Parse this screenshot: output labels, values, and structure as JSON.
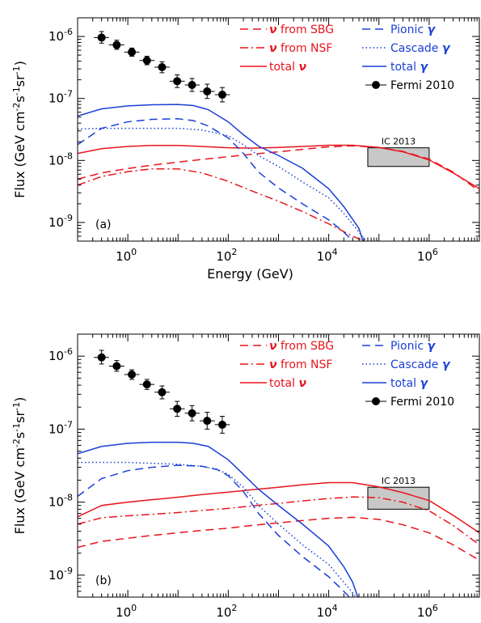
{
  "chart_data": [
    {
      "type": "line",
      "panel_label": "(a)",
      "xlabel": "Energy (GeV)",
      "ylabel": "Flux (GeV cm-2s-1sr-1)",
      "ylabel_parts": [
        "Flux (GeV cm",
        "-2",
        "s",
        "-1",
        "sr",
        "-1",
        ")"
      ],
      "xscale": "log",
      "yscale": "log",
      "xlim": [
        0.1,
        10000000
      ],
      "ylim": [
        5e-10,
        2e-06
      ],
      "x_ticks": [
        {
          "v": 1,
          "base": "10",
          "exp": "0"
        },
        {
          "v": 100,
          "base": "10",
          "exp": "2"
        },
        {
          "v": 10000,
          "base": "10",
          "exp": "4"
        },
        {
          "v": 1000000,
          "base": "10",
          "exp": "6"
        }
      ],
      "y_ticks": [
        {
          "v": 1e-09,
          "base": "10",
          "exp": "-9"
        },
        {
          "v": 1e-08,
          "base": "10",
          "exp": "-8"
        },
        {
          "v": 1e-07,
          "base": "10",
          "exp": "-7"
        },
        {
          "v": 1e-06,
          "base": "10",
          "exp": "-6"
        }
      ],
      "series": [
        {
          "name": "ν from SBG",
          "color": "#e8141c",
          "style": "dashed",
          "x": [
            0.1,
            0.3,
            1,
            3,
            10,
            30,
            100,
            300,
            1000,
            3000,
            10000,
            30000,
            100000,
            300000,
            1000000,
            3000000,
            10000000
          ],
          "y": [
            5e-09,
            6.3e-09,
            7.4e-09,
            8.4e-09,
            9.4e-09,
            1.04e-08,
            1.15e-08,
            1.26e-08,
            1.38e-08,
            1.51e-08,
            1.66e-08,
            1.72e-08,
            1.62e-08,
            1.4e-08,
            1.05e-08,
            6.5e-09,
            3.2e-09
          ]
        },
        {
          "name": "ν from NSF",
          "color": "#e8141c",
          "style": "dashdot",
          "x": [
            0.1,
            0.3,
            1,
            3,
            10,
            30,
            100,
            300,
            1000,
            3000,
            10000,
            30000,
            100000
          ],
          "y": [
            4e-09,
            5.5e-09,
            6.6e-09,
            7.3e-09,
            7.3e-09,
            6.3e-09,
            4.6e-09,
            3.2e-09,
            2.2e-09,
            1.5e-09,
            9.5e-10,
            6e-10,
            4e-10
          ]
        },
        {
          "name": "total ν",
          "color": "#e8141c",
          "style": "solid",
          "x": [
            0.1,
            0.3,
            1,
            3,
            10,
            30,
            100,
            300,
            1000,
            3000,
            10000,
            30000,
            100000,
            300000,
            1000000,
            3000000,
            10000000
          ],
          "y": [
            1.3e-08,
            1.55e-08,
            1.68e-08,
            1.75e-08,
            1.75e-08,
            1.68e-08,
            1.6e-08,
            1.58e-08,
            1.62e-08,
            1.68e-08,
            1.76e-08,
            1.76e-08,
            1.62e-08,
            1.38e-08,
            1.02e-08,
            6.3e-09,
            3.5e-09
          ]
        },
        {
          "name": "Pionic γ",
          "color": "#1a3fd6",
          "style": "dashed",
          "x": [
            0.1,
            0.3,
            1,
            3,
            10,
            20,
            40,
            100,
            200,
            400,
            1000,
            3000,
            10000,
            20000,
            30000
          ],
          "y": [
            1.8e-08,
            3.3e-08,
            4.2e-08,
            4.6e-08,
            4.7e-08,
            4.4e-08,
            3.6e-08,
            2.3e-08,
            1.3e-08,
            6.5e-09,
            3.6e-09,
            2e-09,
            1.1e-09,
            7e-10,
            5e-10
          ]
        },
        {
          "name": "Cascade γ",
          "color": "#1a3fd6",
          "style": "dotted",
          "x": [
            0.1,
            0.3,
            1,
            3,
            10,
            30,
            100,
            200,
            400,
            1000,
            3000,
            10000,
            20000,
            40000,
            70000
          ],
          "y": [
            3.2e-08,
            3.3e-08,
            3.3e-08,
            3.3e-08,
            3.3e-08,
            3.1e-08,
            2.5e-08,
            1.8e-08,
            1.2e-08,
            8e-09,
            4.5e-09,
            2.5e-09,
            1.4e-09,
            7e-10,
            4e-10
          ]
        },
        {
          "name": "total γ",
          "color": "#1a3fd6",
          "style": "solid",
          "x": [
            0.1,
            0.3,
            1,
            3,
            10,
            20,
            40,
            100,
            200,
            400,
            1000,
            3000,
            10000,
            20000,
            40000,
            50000
          ],
          "y": [
            5.2e-08,
            6.8e-08,
            7.6e-08,
            7.9e-08,
            8e-08,
            7.7e-08,
            6.6e-08,
            4.2e-08,
            2.6e-08,
            1.7e-08,
            1.2e-08,
            7.5e-09,
            3.5e-09,
            1.8e-09,
            8e-10,
            4.5e-10
          ]
        }
      ],
      "fermi": {
        "name": "Fermi 2010",
        "points": [
          {
            "x": 0.3,
            "y": 9.6e-07,
            "x_lo": 0.21,
            "x_hi": 0.42,
            "y_lo": 7.8e-07,
            "y_hi": 1.2e-06
          },
          {
            "x": 0.6,
            "y": 7.3e-07,
            "x_lo": 0.42,
            "x_hi": 0.85,
            "y_lo": 6.2e-07,
            "y_hi": 8.7e-07
          },
          {
            "x": 1.2,
            "y": 5.6e-07,
            "x_lo": 0.85,
            "x_hi": 1.7,
            "y_lo": 4.8e-07,
            "y_hi": 6.5e-07
          },
          {
            "x": 2.4,
            "y": 4.1e-07,
            "x_lo": 1.7,
            "x_hi": 3.4,
            "y_lo": 3.5e-07,
            "y_hi": 4.8e-07
          },
          {
            "x": 4.8,
            "y": 3.2e-07,
            "x_lo": 3.4,
            "x_hi": 6.8,
            "y_lo": 2.6e-07,
            "y_hi": 3.9e-07
          },
          {
            "x": 9.6,
            "y": 1.9e-07,
            "x_lo": 6.8,
            "x_hi": 13.6,
            "y_lo": 1.5e-07,
            "y_hi": 2.4e-07
          },
          {
            "x": 19,
            "y": 1.65e-07,
            "x_lo": 13.6,
            "x_hi": 27,
            "y_lo": 1.3e-07,
            "y_hi": 2.1e-07
          },
          {
            "x": 38,
            "y": 1.3e-07,
            "x_lo": 27,
            "x_hi": 54,
            "y_lo": 1e-07,
            "y_hi": 1.7e-07
          },
          {
            "x": 76,
            "y": 1.15e-07,
            "x_lo": 54,
            "x_hi": 108,
            "y_lo": 8.8e-08,
            "y_hi": 1.5e-07
          }
        ]
      },
      "icecube": {
        "label": "IC 2013",
        "x": [
          60000,
          1000000
        ],
        "y": [
          8e-09,
          1.6e-08
        ],
        "fill": "#c8c8c8"
      },
      "legend": {
        "placement": "top-right",
        "red": [
          {
            "prefix": "ν",
            "text": " from SBG",
            "style": "dashed"
          },
          {
            "prefix": "ν",
            "text": " from NSF",
            "style": "dashdot"
          },
          {
            "prefix": "total ",
            "text": "ν",
            "style": "solid"
          }
        ],
        "blue": [
          {
            "text": "Pionic ",
            "suffix": "γ",
            "style": "dashed"
          },
          {
            "text": "Cascade ",
            "suffix": "γ",
            "style": "dotted"
          },
          {
            "text": "total ",
            "suffix": "γ",
            "style": "solid"
          }
        ],
        "fermi_label": "Fermi 2010"
      }
    },
    {
      "type": "line",
      "panel_label": "(b)",
      "xlabel": "Energy (GeV)",
      "ylabel": "Flux (GeV cm-2s-1sr-1)",
      "ylabel_parts": [
        "Flux (GeV cm",
        "-2",
        "s",
        "-1",
        "sr",
        "-1",
        ")"
      ],
      "xscale": "log",
      "yscale": "log",
      "xlim": [
        0.1,
        10000000
      ],
      "ylim": [
        5e-10,
        2e-06
      ],
      "x_ticks": [
        {
          "v": 1,
          "base": "10",
          "exp": "0"
        },
        {
          "v": 100,
          "base": "10",
          "exp": "2"
        },
        {
          "v": 10000,
          "base": "10",
          "exp": "4"
        },
        {
          "v": 1000000,
          "base": "10",
          "exp": "6"
        }
      ],
      "y_ticks": [
        {
          "v": 1e-09,
          "base": "10",
          "exp": "-9"
        },
        {
          "v": 1e-08,
          "base": "10",
          "exp": "-8"
        },
        {
          "v": 1e-07,
          "base": "10",
          "exp": "-7"
        },
        {
          "v": 1e-06,
          "base": "10",
          "exp": "-6"
        }
      ],
      "series": [
        {
          "name": "ν from SBG",
          "color": "#e8141c",
          "style": "dashed",
          "x": [
            0.1,
            0.3,
            1,
            3,
            10,
            30,
            100,
            300,
            1000,
            3000,
            10000,
            30000,
            100000,
            300000,
            1000000,
            3000000,
            10000000
          ],
          "y": [
            2.4e-09,
            2.9e-09,
            3.2e-09,
            3.5e-09,
            3.8e-09,
            4.1e-09,
            4.4e-09,
            4.8e-09,
            5.2e-09,
            5.6e-09,
            6e-09,
            6.2e-09,
            5.8e-09,
            4.9e-09,
            3.8e-09,
            2.6e-09,
            1.6e-09
          ]
        },
        {
          "name": "ν from NSF",
          "color": "#e8141c",
          "style": "dashdot",
          "x": [
            0.1,
            0.3,
            1,
            3,
            10,
            30,
            100,
            300,
            1000,
            3000,
            10000,
            30000,
            100000,
            300000,
            1000000,
            3000000,
            10000000
          ],
          "y": [
            5e-09,
            6.1e-09,
            6.5e-09,
            6.8e-09,
            7.2e-09,
            7.7e-09,
            8.2e-09,
            8.9e-09,
            9.6e-09,
            1.04e-08,
            1.12e-08,
            1.18e-08,
            1.15e-08,
            1e-08,
            7.6e-09,
            4.8e-09,
            2.6e-09
          ]
        },
        {
          "name": "total ν",
          "color": "#e8141c",
          "style": "solid",
          "x": [
            0.1,
            0.3,
            1,
            3,
            10,
            30,
            100,
            300,
            1000,
            3000,
            10000,
            30000,
            100000,
            300000,
            1000000,
            3000000,
            10000000
          ],
          "y": [
            6.3e-09,
            9e-09,
            1e-08,
            1.08e-08,
            1.17e-08,
            1.27e-08,
            1.37e-08,
            1.48e-08,
            1.6e-08,
            1.73e-08,
            1.85e-08,
            1.85e-08,
            1.62e-08,
            1.35e-08,
            1.05e-08,
            6.6e-09,
            3.8e-09
          ]
        },
        {
          "name": "Pionic γ",
          "color": "#1a3fd6",
          "style": "dashed",
          "x": [
            0.1,
            0.3,
            1,
            3,
            10,
            30,
            60,
            100,
            200,
            400,
            1000,
            3000,
            10000,
            20000,
            30000
          ],
          "y": [
            1.2e-08,
            2.1e-08,
            2.7e-08,
            3e-08,
            3.2e-08,
            3.1e-08,
            2.8e-08,
            2.3e-08,
            1.4e-08,
            7e-09,
            3.5e-09,
            1.8e-09,
            9.5e-10,
            6e-10,
            4.5e-10
          ]
        },
        {
          "name": "Cascade γ",
          "color": "#1a3fd6",
          "style": "dotted",
          "x": [
            0.1,
            0.3,
            1,
            3,
            10,
            30,
            60,
            100,
            200,
            400,
            1000,
            3000,
            10000,
            20000,
            40000
          ],
          "y": [
            3.5e-08,
            3.5e-08,
            3.5e-08,
            3.4e-08,
            3.3e-08,
            3.1e-08,
            2.8e-08,
            2.4e-08,
            1.6e-08,
            9e-09,
            5e-09,
            2.6e-09,
            1.4e-09,
            8e-10,
            4.5e-10
          ]
        },
        {
          "name": "total γ",
          "color": "#1a3fd6",
          "style": "solid",
          "x": [
            0.1,
            0.3,
            1,
            3,
            10,
            20,
            40,
            100,
            200,
            400,
            1000,
            3000,
            10000,
            20000,
            30000,
            40000
          ],
          "y": [
            4.6e-08,
            5.8e-08,
            6.4e-08,
            6.6e-08,
            6.6e-08,
            6.4e-08,
            5.8e-08,
            3.8e-08,
            2.4e-08,
            1.5e-08,
            9e-09,
            5e-09,
            2.5e-09,
            1.3e-09,
            8e-10,
            4.5e-10
          ]
        }
      ],
      "fermi": {
        "name": "Fermi 2010",
        "points": [
          {
            "x": 0.3,
            "y": 9.6e-07,
            "x_lo": 0.21,
            "x_hi": 0.42,
            "y_lo": 7.8e-07,
            "y_hi": 1.2e-06
          },
          {
            "x": 0.6,
            "y": 7.3e-07,
            "x_lo": 0.42,
            "x_hi": 0.85,
            "y_lo": 6.2e-07,
            "y_hi": 8.7e-07
          },
          {
            "x": 1.2,
            "y": 5.6e-07,
            "x_lo": 0.85,
            "x_hi": 1.7,
            "y_lo": 4.8e-07,
            "y_hi": 6.5e-07
          },
          {
            "x": 2.4,
            "y": 4.1e-07,
            "x_lo": 1.7,
            "x_hi": 3.4,
            "y_lo": 3.5e-07,
            "y_hi": 4.8e-07
          },
          {
            "x": 4.8,
            "y": 3.2e-07,
            "x_lo": 3.4,
            "x_hi": 6.8,
            "y_lo": 2.6e-07,
            "y_hi": 3.9e-07
          },
          {
            "x": 9.6,
            "y": 1.9e-07,
            "x_lo": 6.8,
            "x_hi": 13.6,
            "y_lo": 1.5e-07,
            "y_hi": 2.4e-07
          },
          {
            "x": 19,
            "y": 1.65e-07,
            "x_lo": 13.6,
            "x_hi": 27,
            "y_lo": 1.3e-07,
            "y_hi": 2.1e-07
          },
          {
            "x": 38,
            "y": 1.3e-07,
            "x_lo": 27,
            "x_hi": 54,
            "y_lo": 1e-07,
            "y_hi": 1.7e-07
          },
          {
            "x": 76,
            "y": 1.15e-07,
            "x_lo": 54,
            "x_hi": 108,
            "y_lo": 8.8e-08,
            "y_hi": 1.5e-07
          }
        ]
      },
      "icecube": {
        "label": "IC 2013",
        "x": [
          60000,
          1000000
        ],
        "y": [
          8e-09,
          1.6e-08
        ],
        "fill": "#c8c8c8"
      },
      "legend": {
        "placement": "top-right",
        "red": [
          {
            "prefix": "ν",
            "text": " from SBG",
            "style": "dashed"
          },
          {
            "prefix": "ν",
            "text": " from NSF",
            "style": "dashdot"
          },
          {
            "prefix": "total ",
            "text": "ν",
            "style": "solid"
          }
        ],
        "blue": [
          {
            "text": "Pionic ",
            "suffix": "γ",
            "style": "dashed"
          },
          {
            "text": "Cascade ",
            "suffix": "γ",
            "style": "dotted"
          },
          {
            "text": "total ",
            "suffix": "γ",
            "style": "solid"
          }
        ],
        "fermi_label": "Fermi 2010"
      }
    }
  ]
}
